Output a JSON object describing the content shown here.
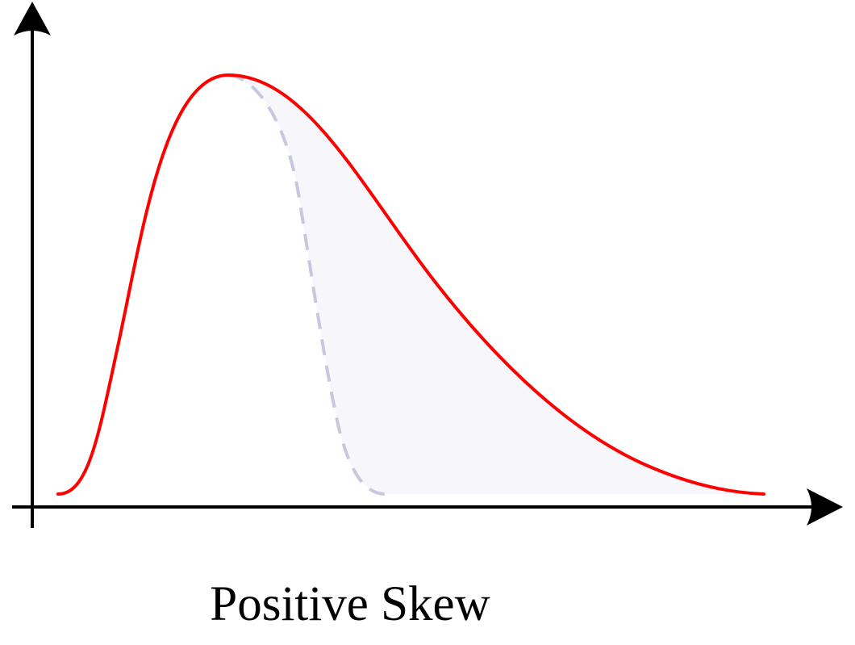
{
  "caption": "Positive Skew",
  "colors": {
    "background": "#ffffff",
    "axis": "#000000",
    "skewed_curve": "#ff0000",
    "reference_curve": "#c7c8de",
    "skew_area_fill": "#f7f7fb"
  }
}
